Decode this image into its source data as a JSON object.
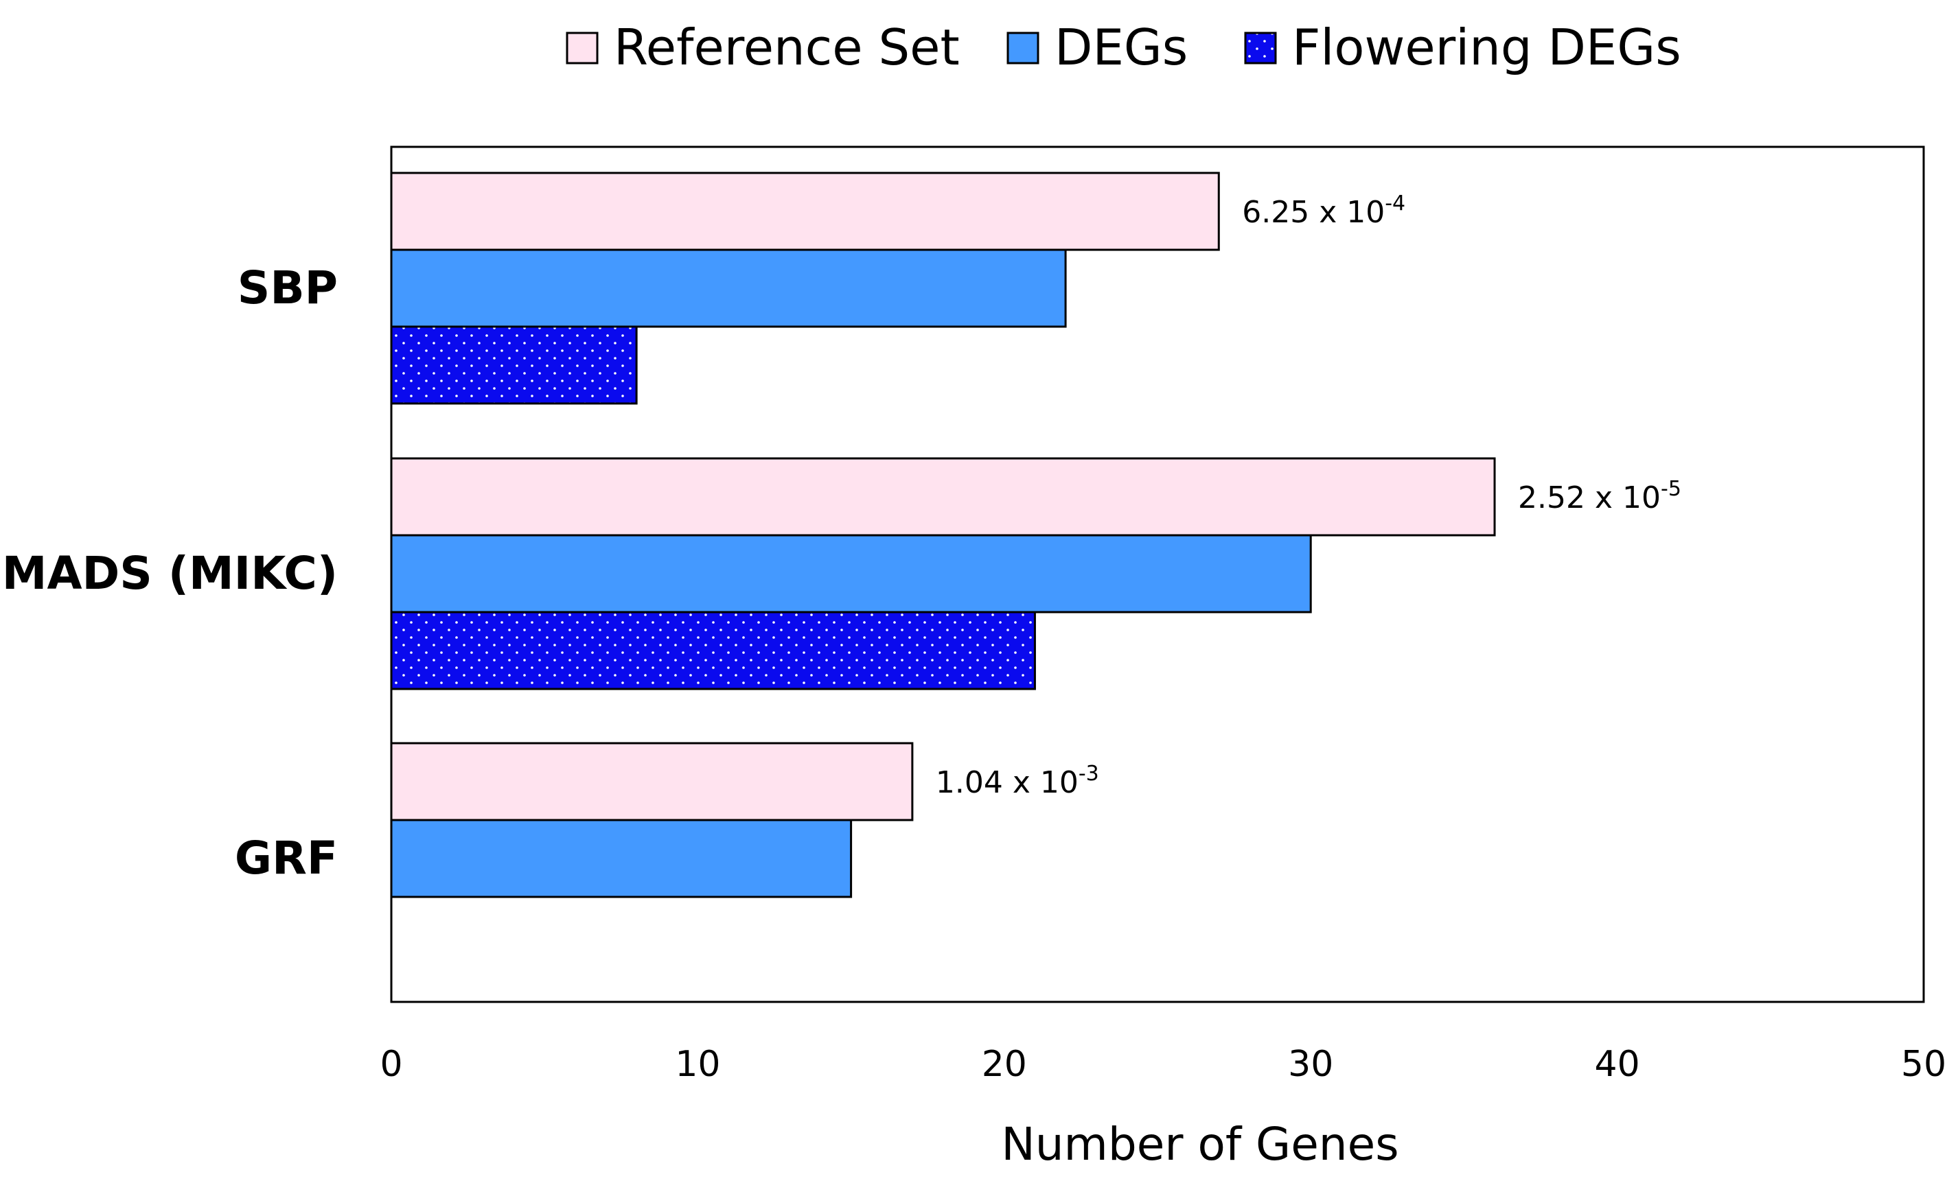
{
  "chart_data": {
    "type": "bar",
    "orientation": "horizontal",
    "title": "",
    "categories": [
      "SBP",
      "MADS (MIKC)",
      "GRF"
    ],
    "series": [
      {
        "name": "Reference Set",
        "values": [
          27,
          36,
          17
        ],
        "color": "#FFE3EF",
        "pattern": "solid"
      },
      {
        "name": "DEGs",
        "values": [
          22,
          30,
          15
        ],
        "color": "#4499FF",
        "pattern": "solid"
      },
      {
        "name": "Flowering DEGs",
        "values": [
          8,
          21,
          null
        ],
        "color": "#0A0AEE",
        "pattern": "dotted"
      }
    ],
    "annotations": [
      {
        "category": "SBP",
        "series": "Reference Set",
        "base": "6.25 x 10",
        "exponent": "-4"
      },
      {
        "category": "MADS (MIKC)",
        "series": "Reference Set",
        "base": "2.52 x 10",
        "exponent": "-5"
      },
      {
        "category": "GRF",
        "series": "Reference Set",
        "base": "1.04 x 10",
        "exponent": "-3"
      }
    ],
    "xlabel": "Number of Genes",
    "ylabel": "",
    "xlim": [
      0,
      50
    ],
    "xticks": [
      0,
      10,
      20,
      30,
      40,
      50
    ],
    "xtick_labels": [
      "0",
      "10",
      "20",
      "30",
      "40",
      "50"
    ],
    "grid": false,
    "legend_position": "top-center"
  }
}
